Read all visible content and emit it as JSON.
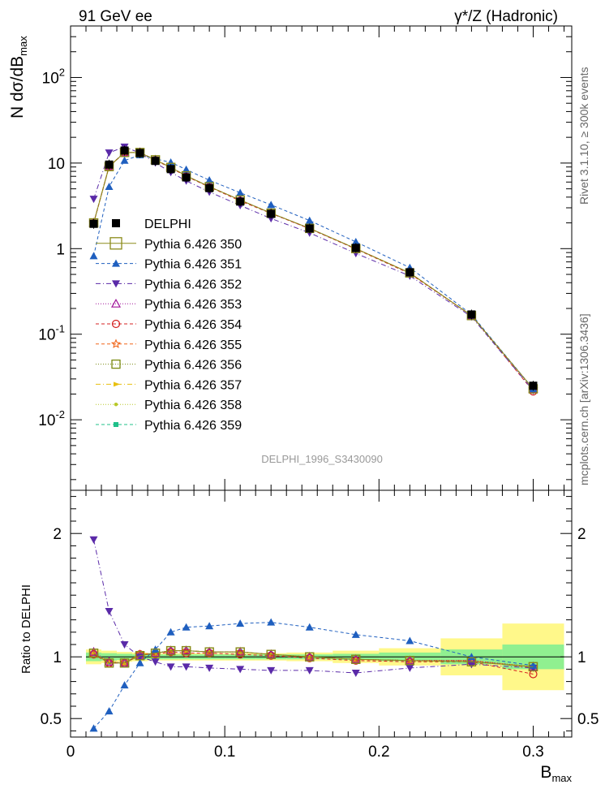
{
  "header": {
    "left": "91 GeV ee",
    "right": "γ*/Z (Hadronic)"
  },
  "side_labels": {
    "rivet": "Rivet 3.1.10, ≥ 300k events",
    "source": "mcplots.cern.ch [arXiv:1306.3436]"
  },
  "watermark": "DELPHI_1996_S3430090",
  "colors": {
    "DELPHI": "#000000",
    "350": "#8b8b1a",
    "351": "#1f5fbf",
    "352": "#5a2aa8",
    "353": "#a0149a",
    "354": "#d42020",
    "355": "#f0661a",
    "356": "#7a8a10",
    "357": "#e8c010",
    "358": "#b8c828",
    "359": "#20c08a",
    "band_inner": "#90f090",
    "band_outer": "#fff88a"
  },
  "chart_data": [
    {
      "type": "scatter",
      "panel": "main",
      "ylabel": "N dσ/dB_max",
      "yscale": "log",
      "ylim": [
        0.0015,
        400
      ],
      "xlim": [
        0,
        0.325
      ],
      "y_ticks": [
        "10^-2",
        "10^-1",
        "1",
        "10",
        "10^2"
      ],
      "x": [
        0.015,
        0.025,
        0.035,
        0.045,
        0.055,
        0.065,
        0.075,
        0.09,
        0.11,
        0.13,
        0.155,
        0.185,
        0.22,
        0.26,
        0.3
      ],
      "legend_position": "middle-left",
      "series": [
        {
          "name": "DELPHI",
          "key": "DELPHI",
          "marker": "square-filled",
          "values": [
            1.95,
            9.6,
            14.0,
            13.1,
            10.6,
            8.5,
            6.8,
            5.1,
            3.55,
            2.55,
            1.72,
            1.02,
            0.53,
            0.17,
            0.025
          ]
        },
        {
          "name": "Pythia 6.426 350",
          "key": "350",
          "marker": "square-open",
          "line": "solid",
          "values": [
            2.0,
            9.1,
            13.3,
            13.2,
            10.9,
            8.9,
            7.1,
            5.3,
            3.7,
            2.6,
            1.73,
            1.0,
            0.52,
            0.165,
            0.023
          ]
        },
        {
          "name": "Pythia 6.426 351",
          "key": "351",
          "marker": "triangle-up",
          "line": "dashed",
          "values": [
            0.82,
            5.3,
            10.7,
            12.4,
            11.2,
            10.2,
            8.4,
            6.3,
            4.5,
            3.25,
            2.13,
            1.2,
            0.6,
            0.17,
            0.023
          ]
        },
        {
          "name": "Pythia 6.426 352",
          "key": "352",
          "marker": "triangle-down",
          "line": "dashdot",
          "values": [
            3.8,
            13.2,
            15.5,
            13.1,
            10.1,
            7.8,
            6.2,
            4.6,
            3.2,
            2.25,
            1.53,
            0.88,
            0.48,
            0.16,
            0.022
          ]
        },
        {
          "name": "Pythia 6.426 353",
          "key": "353",
          "marker": "triangle-open",
          "line": "dotted",
          "values": [
            2.0,
            9.2,
            13.3,
            13.3,
            10.9,
            8.9,
            7.1,
            5.3,
            3.7,
            2.6,
            1.72,
            1.0,
            0.52,
            0.165,
            0.023
          ]
        },
        {
          "name": "Pythia 6.426 354",
          "key": "354",
          "marker": "circle-open",
          "line": "dashed",
          "values": [
            1.98,
            9.1,
            13.2,
            13.3,
            10.8,
            8.8,
            7.0,
            5.25,
            3.62,
            2.58,
            1.71,
            0.99,
            0.51,
            0.165,
            0.0215
          ]
        },
        {
          "name": "Pythia 6.426 355",
          "key": "355",
          "marker": "star-open",
          "line": "dashed",
          "values": [
            2.0,
            9.15,
            13.3,
            13.3,
            10.9,
            8.9,
            7.1,
            5.3,
            3.7,
            2.6,
            1.72,
            1.0,
            0.52,
            0.165,
            0.023
          ]
        },
        {
          "name": "Pythia 6.426 356",
          "key": "356",
          "marker": "square-open",
          "line": "dotted",
          "values": [
            2.0,
            9.1,
            13.3,
            13.3,
            10.9,
            8.9,
            7.1,
            5.3,
            3.7,
            2.6,
            1.72,
            1.0,
            0.52,
            0.165,
            0.023
          ]
        },
        {
          "name": "Pythia 6.426 357",
          "key": "357",
          "marker": "triangle-right",
          "line": "dashdot",
          "values": [
            2.0,
            9.2,
            13.3,
            13.3,
            10.9,
            8.9,
            7.1,
            5.3,
            3.7,
            2.6,
            1.72,
            1.0,
            0.52,
            0.165,
            0.023
          ]
        },
        {
          "name": "Pythia 6.426 358",
          "key": "358",
          "marker": "dot",
          "line": "dotted",
          "values": [
            2.0,
            9.2,
            13.3,
            13.3,
            10.9,
            8.9,
            7.1,
            5.3,
            3.7,
            2.6,
            1.72,
            1.0,
            0.52,
            0.165,
            0.023
          ]
        },
        {
          "name": "Pythia 6.426 359",
          "key": "359",
          "marker": "square-filled-small",
          "line": "dashed",
          "values": [
            2.0,
            9.2,
            13.3,
            13.3,
            10.9,
            8.9,
            7.1,
            5.3,
            3.7,
            2.6,
            1.72,
            1.0,
            0.52,
            0.165,
            0.023
          ]
        }
      ]
    },
    {
      "type": "scatter",
      "panel": "ratio",
      "ylabel": "Ratio to DELPHI",
      "xlabel": "B_max",
      "ylim": [
        0.35,
        2.35
      ],
      "xlim": [
        0,
        0.325
      ],
      "y_ticks": [
        "0.5",
        "1",
        "2"
      ],
      "x_ticks": [
        "0",
        "0.1",
        "0.2",
        "0.3"
      ],
      "x": [
        0.015,
        0.025,
        0.035,
        0.045,
        0.055,
        0.065,
        0.075,
        0.09,
        0.11,
        0.13,
        0.155,
        0.185,
        0.22,
        0.26,
        0.3
      ],
      "uncertainty_bands": {
        "x_edges": [
          0.01,
          0.02,
          0.03,
          0.04,
          0.05,
          0.06,
          0.07,
          0.08,
          0.1,
          0.12,
          0.14,
          0.17,
          0.2,
          0.24,
          0.28,
          0.32
        ],
        "inner": [
          0.035,
          0.03,
          0.025,
          0.02,
          0.02,
          0.02,
          0.02,
          0.02,
          0.02,
          0.02,
          0.02,
          0.025,
          0.035,
          0.06,
          0.1
        ],
        "outer": [
          0.06,
          0.05,
          0.04,
          0.035,
          0.03,
          0.03,
          0.03,
          0.03,
          0.03,
          0.03,
          0.035,
          0.05,
          0.07,
          0.15,
          0.27
        ]
      },
      "series": [
        {
          "key": "350",
          "values": [
            1.03,
            0.95,
            0.95,
            1.01,
            1.03,
            1.05,
            1.05,
            1.04,
            1.04,
            1.02,
            1.0,
            0.98,
            0.97,
            0.96,
            0.92
          ]
        },
        {
          "key": "351",
          "values": [
            0.42,
            0.56,
            0.77,
            0.95,
            1.06,
            1.2,
            1.24,
            1.25,
            1.27,
            1.28,
            1.24,
            1.18,
            1.13,
            1.0,
            0.93
          ]
        },
        {
          "key": "352",
          "values": [
            1.95,
            1.37,
            1.1,
            1.0,
            0.96,
            0.92,
            0.92,
            0.91,
            0.9,
            0.89,
            0.89,
            0.87,
            0.91,
            0.94,
            0.91
          ]
        },
        {
          "key": "353",
          "values": [
            1.04,
            0.96,
            0.95,
            1.01,
            1.03,
            1.05,
            1.05,
            1.04,
            1.04,
            1.02,
            1.0,
            0.98,
            0.97,
            0.97,
            0.92
          ]
        },
        {
          "key": "354",
          "values": [
            1.02,
            0.95,
            0.95,
            1.02,
            1.02,
            1.04,
            1.03,
            1.03,
            1.02,
            1.01,
            0.99,
            0.97,
            0.96,
            0.96,
            0.86
          ]
        },
        {
          "key": "355",
          "values": [
            1.03,
            0.95,
            0.95,
            1.02,
            1.03,
            1.05,
            1.05,
            1.04,
            1.04,
            1.02,
            1.0,
            0.98,
            0.97,
            0.97,
            0.91
          ]
        },
        {
          "key": "356",
          "values": [
            1.03,
            0.95,
            0.95,
            1.01,
            1.03,
            1.05,
            1.05,
            1.04,
            1.04,
            1.02,
            1.0,
            0.98,
            0.97,
            0.96,
            0.92
          ]
        },
        {
          "key": "357",
          "values": [
            1.03,
            0.96,
            0.95,
            1.02,
            1.03,
            1.05,
            1.05,
            1.04,
            1.04,
            1.02,
            1.0,
            0.98,
            0.97,
            0.97,
            0.92
          ]
        },
        {
          "key": "358",
          "values": [
            1.03,
            0.96,
            0.95,
            1.02,
            1.03,
            1.05,
            1.05,
            1.04,
            1.04,
            1.02,
            1.0,
            0.98,
            0.97,
            0.97,
            0.92
          ]
        },
        {
          "key": "359",
          "values": [
            1.03,
            0.96,
            0.95,
            1.02,
            1.03,
            1.05,
            1.05,
            1.04,
            1.04,
            1.02,
            1.0,
            0.98,
            0.97,
            0.97,
            0.92
          ]
        }
      ]
    }
  ]
}
